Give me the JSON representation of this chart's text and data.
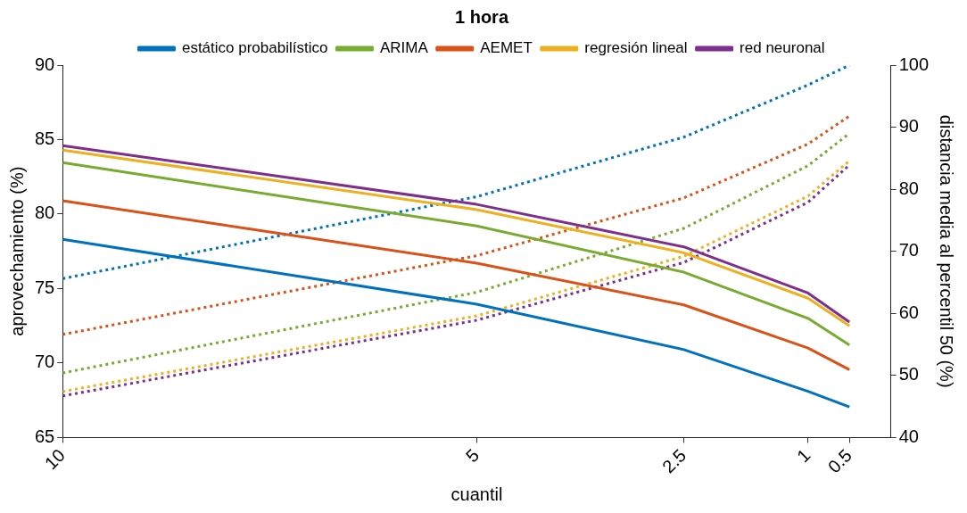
{
  "chart_data": {
    "type": "line",
    "title": "1 hora",
    "xlabel": "cuantil",
    "ylabel": "aprovechamiento (%)",
    "y2label": "distancia media al percentil 50 (%)",
    "x": [
      10,
      5,
      2.5,
      1,
      0.5
    ],
    "xlim": [
      10,
      0
    ],
    "xticks": [
      10,
      5,
      2.5,
      1,
      0.5
    ],
    "ylim": [
      65,
      90
    ],
    "yticks": [
      65,
      70,
      75,
      80,
      85,
      90
    ],
    "y2lim": [
      40,
      100
    ],
    "y2ticks": [
      40,
      50,
      60,
      70,
      80,
      90,
      100
    ],
    "legend": "top",
    "marker": "none",
    "series": [
      {
        "name": "estático probabilístico",
        "color": "#0072bd",
        "line_style": "solid",
        "values": [
          78.3,
          73.95,
          70.9,
          68.1,
          67.05
        ]
      },
      {
        "name": "ARIMA",
        "color": "#77ac30",
        "line_style": "solid",
        "values": [
          83.45,
          79.2,
          76.1,
          73.0,
          71.2
        ]
      },
      {
        "name": "AEMET",
        "color": "#d95319",
        "line_style": "solid",
        "values": [
          80.9,
          76.7,
          73.9,
          71.0,
          69.55
        ]
      },
      {
        "name": "regresión lineal",
        "color": "#edb120",
        "line_style": "solid",
        "values": [
          84.3,
          80.3,
          77.4,
          74.35,
          72.5
        ]
      },
      {
        "name": "red neuronal",
        "color": "#7e2f8e",
        "line_style": "solid",
        "values": [
          84.6,
          80.65,
          77.8,
          74.7,
          72.75
        ]
      },
      {
        "color": "#0072bd",
        "line_style": "dotted",
        "axis": "y2",
        "values": [
          65.6,
          78.8,
          88.4,
          96.8,
          100
        ]
      },
      {
        "color": "#77ac30",
        "line_style": "dotted",
        "axis": "y2",
        "values": [
          50.4,
          63.4,
          73.7,
          83.8,
          89.0
        ]
      },
      {
        "color": "#d95319",
        "line_style": "dotted",
        "axis": "y2",
        "values": [
          56.6,
          69.3,
          78.6,
          87.3,
          91.8
        ]
      },
      {
        "color": "#edb120",
        "line_style": "dotted",
        "axis": "y2",
        "values": [
          47.4,
          59.6,
          69.2,
          78.9,
          84.6
        ]
      },
      {
        "color": "#7e2f8e",
        "line_style": "dotted",
        "axis": "y2",
        "values": [
          46.7,
          58.9,
          68.2,
          77.9,
          83.9
        ]
      }
    ]
  }
}
